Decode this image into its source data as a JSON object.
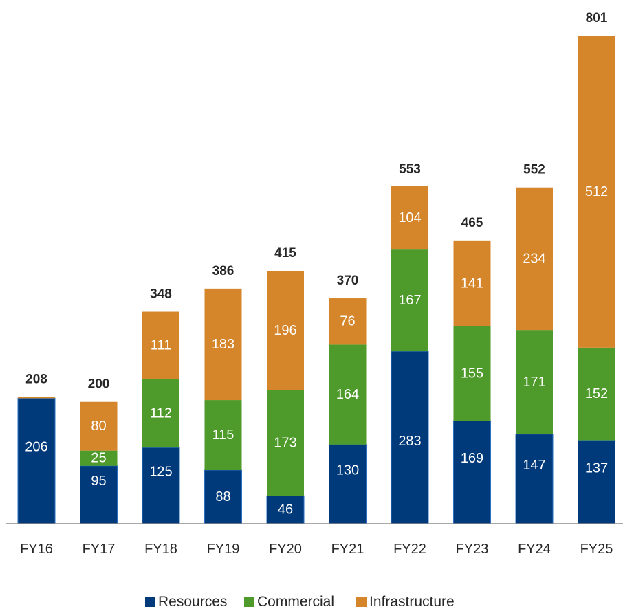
{
  "chart_data": {
    "type": "bar",
    "stacked": true,
    "categories": [
      "FY16",
      "FY17",
      "FY18",
      "FY19",
      "FY20",
      "FY21",
      "FY22",
      "FY23",
      "FY24",
      "FY25"
    ],
    "series": [
      {
        "name": "Resources",
        "color": "#003a7a",
        "values": [
          206,
          95,
          125,
          88,
          46,
          130,
          283,
          169,
          147,
          137
        ]
      },
      {
        "name": "Commercial",
        "color": "#4e9a2a",
        "values": [
          0,
          25,
          112,
          115,
          173,
          164,
          167,
          155,
          171,
          152
        ]
      },
      {
        "name": "Infrastructure",
        "color": "#d5862a",
        "values": [
          2,
          80,
          111,
          183,
          196,
          76,
          104,
          141,
          234,
          512
        ]
      }
    ],
    "segment_labels": [
      [
        "206",
        "",
        ""
      ],
      [
        "95",
        "25",
        "80"
      ],
      [
        "125",
        "112",
        "111"
      ],
      [
        "88",
        "115",
        "183"
      ],
      [
        "46",
        "173",
        "196"
      ],
      [
        "130",
        "164",
        "76"
      ],
      [
        "283",
        "167",
        "104"
      ],
      [
        "169",
        "155",
        "141"
      ],
      [
        "147",
        "171",
        "234"
      ],
      [
        "137",
        "152",
        "512"
      ]
    ],
    "totals": [
      208,
      200,
      348,
      386,
      415,
      370,
      553,
      465,
      552,
      801
    ],
    "title": "",
    "xlabel": "",
    "ylabel": "",
    "ylim": [
      0,
      801
    ],
    "grid": false,
    "legend_position": "bottom"
  }
}
